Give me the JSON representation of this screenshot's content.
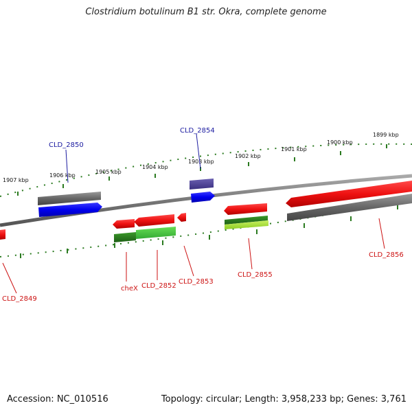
{
  "title": "Clostridium botulinum B1 str. Okra, complete genome",
  "footer": {
    "accession": "Accession: NC_010516",
    "topology": "Topology: circular; Length: 3,958,233 bp; Genes: 3,761"
  },
  "colors": {
    "backbone": "#888888",
    "tick": "#2a7a1f",
    "forward_gene": "#0000ee",
    "forward_dark": "#4a3f8a",
    "reverse_gene": "#ee1111",
    "cds_gray": "#666666",
    "green_dark": "#2a7a1f",
    "green_light": "#44cc44",
    "green_lime": "#a6e22e",
    "label_blue": "#1a1aa0",
    "label_red": "#cc1111"
  },
  "ticks": [
    {
      "label": "1907 kbp"
    },
    {
      "label": "1906 kbp"
    },
    {
      "label": "1905 kbp"
    },
    {
      "label": "1904 kbp"
    },
    {
      "label": "1903 kbp"
    },
    {
      "label": "1902 kbp"
    },
    {
      "label": "1901 kbp"
    },
    {
      "label": "1900 kbp"
    },
    {
      "label": "1899 kbp"
    }
  ],
  "genes": [
    {
      "label": "CLD_2850",
      "strand": "forward"
    },
    {
      "label": "CLD_2854",
      "strand": "forward"
    },
    {
      "label": "CLD_2849",
      "strand": "reverse"
    },
    {
      "label": "cheX",
      "strand": "reverse"
    },
    {
      "label": "CLD_2852",
      "strand": "reverse"
    },
    {
      "label": "CLD_2853",
      "strand": "reverse"
    },
    {
      "label": "CLD_2855",
      "strand": "reverse"
    },
    {
      "label": "CLD_2856",
      "strand": "reverse"
    }
  ]
}
